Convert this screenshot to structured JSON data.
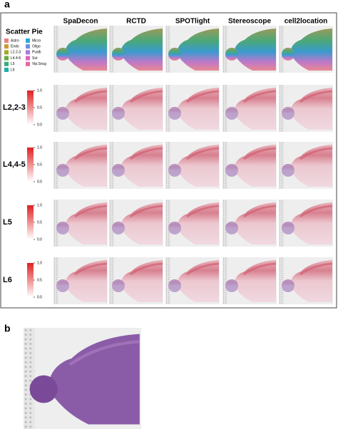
{
  "panel_a": {
    "label": "a",
    "columns": [
      "SpaDecon",
      "RCTD",
      "SPOTlight",
      "Stereoscope",
      "cell2location"
    ],
    "legend": {
      "title": "Scatter Pie",
      "items": [
        {
          "label": "Astro",
          "color": "#e8837a"
        },
        {
          "label": "Endo",
          "color": "#c89a30"
        },
        {
          "label": "L2.2-3",
          "color": "#a6a628"
        },
        {
          "label": "L4.4-5",
          "color": "#6aa842"
        },
        {
          "label": "L5",
          "color": "#34b07a"
        },
        {
          "label": "L6",
          "color": "#20b0a8"
        },
        {
          "label": "Micro",
          "color": "#28a8d8"
        },
        {
          "label": "Oligo",
          "color": "#6890e0"
        },
        {
          "label": "Pvalb",
          "color": "#a878e0"
        },
        {
          "label": "Sst",
          "color": "#e060c0"
        },
        {
          "label": "Vip.Sncg",
          "color": "#e868a0"
        }
      ]
    },
    "rows": [
      "L2,2-3",
      "L4,4-5",
      "L5",
      "L6"
    ],
    "colorbar": {
      "ticks": [
        {
          "value": 1,
          "label": "1.0"
        },
        {
          "value": 0.5,
          "label": "0.5"
        },
        {
          "value": 0,
          "label": "0.0"
        }
      ]
    }
  },
  "panel_b": {
    "label": "b"
  }
}
